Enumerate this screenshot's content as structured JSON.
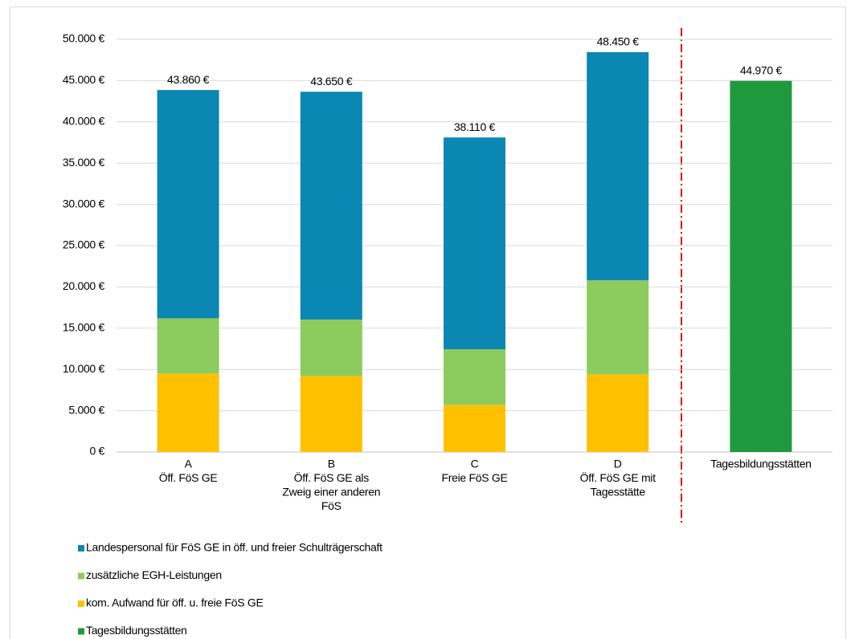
{
  "chart_data": {
    "type": "stacked_bar",
    "categories": [
      [
        "A",
        "Öff. FöS GE"
      ],
      [
        "B",
        "Öff. FöS GE als",
        "Zweig einer anderen",
        "FöS"
      ],
      [
        "C",
        "Freie FöS GE"
      ],
      [
        "D",
        "Öff. FöS GE mit",
        "Tagesstätte"
      ],
      [
        "Tagesbildungsstätten"
      ]
    ],
    "series": [
      {
        "name": "Landespersonal für FöS GE in öff. und  freier Schulträgerschaft",
        "color": "#0b87b3",
        "values": [
          27660,
          27600,
          25660,
          27650,
          null
        ]
      },
      {
        "name": "zusätzliche EGH-Leistungen",
        "color": "#8ccb5e",
        "values": [
          6700,
          6850,
          6750,
          11400,
          null
        ]
      },
      {
        "name": "kom. Aufwand für öff. u. freie FöS GE",
        "color": "#ffc000",
        "values": [
          9500,
          9200,
          5700,
          9400,
          null
        ]
      },
      {
        "name": "Tagesbildungsstätten",
        "color": "#1f9a3e",
        "values": [
          null,
          null,
          null,
          null,
          44970
        ]
      }
    ],
    "totals": {
      "values": [
        43860,
        43650,
        38110,
        48450,
        44970
      ],
      "value_labels": [
        "43.860 €",
        "43.650 €",
        "38.110 €",
        "48.450 €",
        "44.970 €"
      ]
    },
    "ylim": [
      0,
      50000
    ],
    "yticks": [
      {
        "value": 0,
        "label": "0 €"
      },
      {
        "value": 5000,
        "label": "5.000 €"
      },
      {
        "value": 10000,
        "label": "10.000 €"
      },
      {
        "value": 15000,
        "label": "15.000 €"
      },
      {
        "value": 20000,
        "label": "20.000 €"
      },
      {
        "value": 25000,
        "label": "25.000 €"
      },
      {
        "value": 30000,
        "label": "30.000 €"
      },
      {
        "value": 35000,
        "label": "35.000 €"
      },
      {
        "value": 40000,
        "label": "40.000 €"
      },
      {
        "value": 45000,
        "label": "45.000 €"
      },
      {
        "value": 50000,
        "label": "50.000 €"
      }
    ],
    "grid": true
  }
}
